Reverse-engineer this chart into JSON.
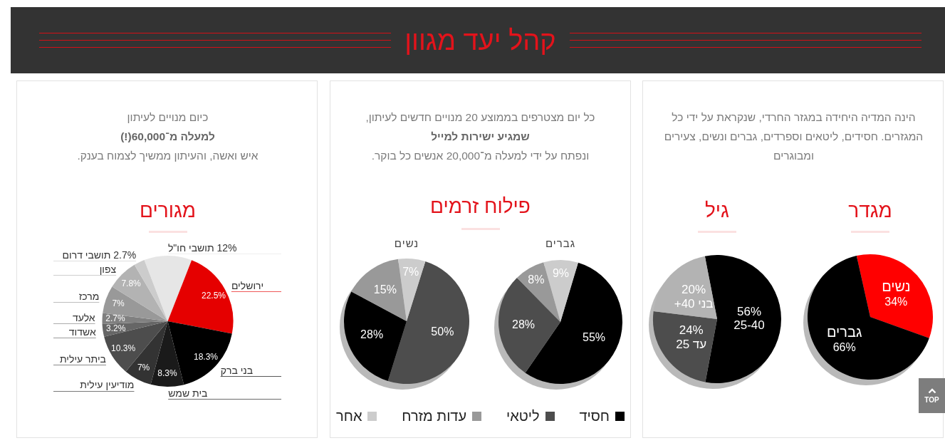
{
  "chart_data": [
    {
      "type": "other",
      "title": "קהל יעד מגוון",
      "annotations": [
        "TOP"
      ]
    },
    {
      "type": "other",
      "annotations": [
        "הינה המדיה היחידה במגזר החרדי, שנקראת על ידי כל המגזרים. חסידים, ליטאים וספרדים, גברים ונשים, צעירים ומבוגרים"
      ]
    },
    {
      "type": "pie",
      "title": "מגדר",
      "categories": [
        "נשים",
        "גברים"
      ],
      "values": [
        34,
        66
      ],
      "colors": [
        "#ff0000",
        "#000000"
      ],
      "value_labels": [
        "34%",
        "66%"
      ]
    },
    {
      "type": "pie",
      "title": "גיל",
      "categories": [
        "25-40",
        "עד 25",
        "בני 40+"
      ],
      "values": [
        56,
        24,
        20
      ],
      "colors": [
        "#000000",
        "#4d4d4d",
        "#b3b3b3"
      ],
      "value_labels": [
        "56%",
        "24%",
        "20%"
      ]
    },
    {
      "type": "other",
      "title": "פילוח זרמים",
      "annotations": [
        "כל יום מצטרפים בממוצע 20 מנויים חדשים לעיתון,",
        "שמגיע ישירות למייל",
        "ונפתח על ידי למעלה מ־20,000 אנשים כל בוקר."
      ]
    },
    {
      "type": "pie",
      "title": "גברים",
      "categories": [
        "חסיד",
        "ליטאי",
        "עדות מזרח",
        "אחר"
      ],
      "values": [
        55,
        28,
        8,
        9
      ],
      "colors": [
        "#000000",
        "#4d4d4d",
        "#999999",
        "#cccccc"
      ],
      "value_labels": [
        "55%",
        "28%",
        "8%",
        "9%"
      ],
      "legend": "bottom"
    },
    {
      "type": "pie",
      "title": "נשים",
      "categories": [
        null,
        null,
        null,
        null
      ],
      "values": [
        50,
        28,
        15,
        7
      ],
      "colors": [
        "#4d4d4d",
        "#000000",
        "#999999",
        "#cccccc"
      ],
      "value_labels": [
        "50%",
        "28%",
        "15%",
        "7%"
      ]
    },
    {
      "type": "other",
      "annotations": [
        "כיום מנויים לעיתון",
        "למעלה מ־60,000(!)",
        "איש ואשה, והעיתון ממשיך לצמוח בענק."
      ]
    },
    {
      "type": "pie",
      "title": "מגורים",
      "categories": [
        "12% תושבי חו\"ל",
        "ירושלים",
        "בני ברק",
        "בית שמש",
        "מודיעין עילית",
        "ביתר עילית",
        "אשדוד",
        "אלעד",
        "מרכז",
        "צפון",
        "2.7% תושבי דרום"
      ],
      "values": [
        12,
        22.5,
        18.3,
        8.3,
        7,
        10.3,
        3.2,
        2.7,
        7,
        7.8,
        2.7
      ],
      "colors": [
        "#e6e6e6",
        "#e50000",
        "#000000",
        "#1a1a1a",
        "#333333",
        "#4d4d4d",
        "#666666",
        "#808080",
        "#999999",
        "#b3b3b3",
        "#cccccc"
      ],
      "value_labels": [
        null,
        "22.5%",
        "18.3%",
        "8.3%",
        "7%",
        "10.3%",
        "3.2%",
        "2.7%",
        "7%",
        "7.8%",
        null
      ]
    }
  ]
}
